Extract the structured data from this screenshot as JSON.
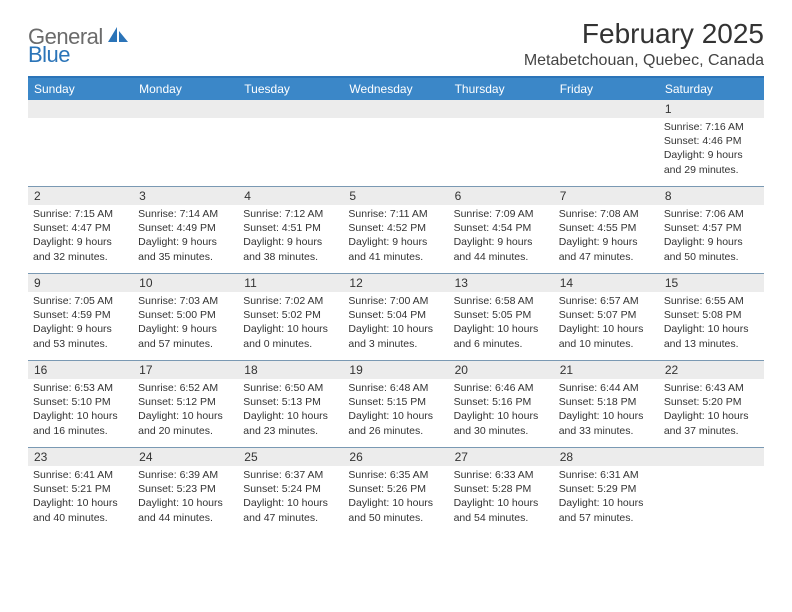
{
  "logo": {
    "part1": "General",
    "part2": "Blue"
  },
  "title": "February 2025",
  "location": "Metabetchouan, Quebec, Canada",
  "header_bg": "#3b87c8",
  "header_border": "#2b74b8",
  "row_border": "#7a99b3",
  "daynum_bg": "#ececec",
  "text_color": "#333333",
  "weekdays": [
    "Sunday",
    "Monday",
    "Tuesday",
    "Wednesday",
    "Thursday",
    "Friday",
    "Saturday"
  ],
  "weeks": [
    [
      {
        "n": "",
        "sr": "",
        "ss": "",
        "dl": ""
      },
      {
        "n": "",
        "sr": "",
        "ss": "",
        "dl": ""
      },
      {
        "n": "",
        "sr": "",
        "ss": "",
        "dl": ""
      },
      {
        "n": "",
        "sr": "",
        "ss": "",
        "dl": ""
      },
      {
        "n": "",
        "sr": "",
        "ss": "",
        "dl": ""
      },
      {
        "n": "",
        "sr": "",
        "ss": "",
        "dl": ""
      },
      {
        "n": "1",
        "sr": "Sunrise: 7:16 AM",
        "ss": "Sunset: 4:46 PM",
        "dl": "Daylight: 9 hours and 29 minutes."
      }
    ],
    [
      {
        "n": "2",
        "sr": "Sunrise: 7:15 AM",
        "ss": "Sunset: 4:47 PM",
        "dl": "Daylight: 9 hours and 32 minutes."
      },
      {
        "n": "3",
        "sr": "Sunrise: 7:14 AM",
        "ss": "Sunset: 4:49 PM",
        "dl": "Daylight: 9 hours and 35 minutes."
      },
      {
        "n": "4",
        "sr": "Sunrise: 7:12 AM",
        "ss": "Sunset: 4:51 PM",
        "dl": "Daylight: 9 hours and 38 minutes."
      },
      {
        "n": "5",
        "sr": "Sunrise: 7:11 AM",
        "ss": "Sunset: 4:52 PM",
        "dl": "Daylight: 9 hours and 41 minutes."
      },
      {
        "n": "6",
        "sr": "Sunrise: 7:09 AM",
        "ss": "Sunset: 4:54 PM",
        "dl": "Daylight: 9 hours and 44 minutes."
      },
      {
        "n": "7",
        "sr": "Sunrise: 7:08 AM",
        "ss": "Sunset: 4:55 PM",
        "dl": "Daylight: 9 hours and 47 minutes."
      },
      {
        "n": "8",
        "sr": "Sunrise: 7:06 AM",
        "ss": "Sunset: 4:57 PM",
        "dl": "Daylight: 9 hours and 50 minutes."
      }
    ],
    [
      {
        "n": "9",
        "sr": "Sunrise: 7:05 AM",
        "ss": "Sunset: 4:59 PM",
        "dl": "Daylight: 9 hours and 53 minutes."
      },
      {
        "n": "10",
        "sr": "Sunrise: 7:03 AM",
        "ss": "Sunset: 5:00 PM",
        "dl": "Daylight: 9 hours and 57 minutes."
      },
      {
        "n": "11",
        "sr": "Sunrise: 7:02 AM",
        "ss": "Sunset: 5:02 PM",
        "dl": "Daylight: 10 hours and 0 minutes."
      },
      {
        "n": "12",
        "sr": "Sunrise: 7:00 AM",
        "ss": "Sunset: 5:04 PM",
        "dl": "Daylight: 10 hours and 3 minutes."
      },
      {
        "n": "13",
        "sr": "Sunrise: 6:58 AM",
        "ss": "Sunset: 5:05 PM",
        "dl": "Daylight: 10 hours and 6 minutes."
      },
      {
        "n": "14",
        "sr": "Sunrise: 6:57 AM",
        "ss": "Sunset: 5:07 PM",
        "dl": "Daylight: 10 hours and 10 minutes."
      },
      {
        "n": "15",
        "sr": "Sunrise: 6:55 AM",
        "ss": "Sunset: 5:08 PM",
        "dl": "Daylight: 10 hours and 13 minutes."
      }
    ],
    [
      {
        "n": "16",
        "sr": "Sunrise: 6:53 AM",
        "ss": "Sunset: 5:10 PM",
        "dl": "Daylight: 10 hours and 16 minutes."
      },
      {
        "n": "17",
        "sr": "Sunrise: 6:52 AM",
        "ss": "Sunset: 5:12 PM",
        "dl": "Daylight: 10 hours and 20 minutes."
      },
      {
        "n": "18",
        "sr": "Sunrise: 6:50 AM",
        "ss": "Sunset: 5:13 PM",
        "dl": "Daylight: 10 hours and 23 minutes."
      },
      {
        "n": "19",
        "sr": "Sunrise: 6:48 AM",
        "ss": "Sunset: 5:15 PM",
        "dl": "Daylight: 10 hours and 26 minutes."
      },
      {
        "n": "20",
        "sr": "Sunrise: 6:46 AM",
        "ss": "Sunset: 5:16 PM",
        "dl": "Daylight: 10 hours and 30 minutes."
      },
      {
        "n": "21",
        "sr": "Sunrise: 6:44 AM",
        "ss": "Sunset: 5:18 PM",
        "dl": "Daylight: 10 hours and 33 minutes."
      },
      {
        "n": "22",
        "sr": "Sunrise: 6:43 AM",
        "ss": "Sunset: 5:20 PM",
        "dl": "Daylight: 10 hours and 37 minutes."
      }
    ],
    [
      {
        "n": "23",
        "sr": "Sunrise: 6:41 AM",
        "ss": "Sunset: 5:21 PM",
        "dl": "Daylight: 10 hours and 40 minutes."
      },
      {
        "n": "24",
        "sr": "Sunrise: 6:39 AM",
        "ss": "Sunset: 5:23 PM",
        "dl": "Daylight: 10 hours and 44 minutes."
      },
      {
        "n": "25",
        "sr": "Sunrise: 6:37 AM",
        "ss": "Sunset: 5:24 PM",
        "dl": "Daylight: 10 hours and 47 minutes."
      },
      {
        "n": "26",
        "sr": "Sunrise: 6:35 AM",
        "ss": "Sunset: 5:26 PM",
        "dl": "Daylight: 10 hours and 50 minutes."
      },
      {
        "n": "27",
        "sr": "Sunrise: 6:33 AM",
        "ss": "Sunset: 5:28 PM",
        "dl": "Daylight: 10 hours and 54 minutes."
      },
      {
        "n": "28",
        "sr": "Sunrise: 6:31 AM",
        "ss": "Sunset: 5:29 PM",
        "dl": "Daylight: 10 hours and 57 minutes."
      },
      {
        "n": "",
        "sr": "",
        "ss": "",
        "dl": ""
      }
    ]
  ]
}
